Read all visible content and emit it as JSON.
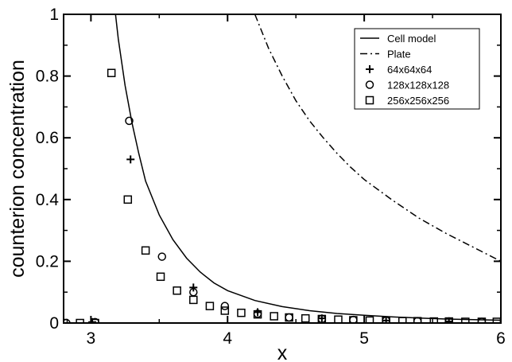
{
  "chart_data": {
    "type": "scatter",
    "xlabel": "x",
    "ylabel": "counterion concentration",
    "xlim": [
      2.8,
      6
    ],
    "ylim": [
      0,
      1
    ],
    "x_ticks": [
      3,
      4,
      5,
      6
    ],
    "y_ticks": [
      0,
      0.2,
      0.4,
      0.6,
      0.8,
      1
    ],
    "x_tick_labels": [
      "3",
      "4",
      "5",
      "6"
    ],
    "y_tick_labels": [
      "0",
      "0.2",
      "0.4",
      "0.6",
      "0.8",
      "1"
    ],
    "grid": false,
    "legend_position": "top-right",
    "series": [
      {
        "name": "Cell model",
        "kind": "line",
        "style": "solid",
        "x": [
          3.18,
          3.2,
          3.25,
          3.3,
          3.35,
          3.4,
          3.5,
          3.6,
          3.7,
          3.8,
          3.9,
          4.0,
          4.2,
          4.4,
          4.6,
          4.8,
          5.0,
          5.2,
          5.4,
          5.6,
          5.8,
          6.0
        ],
        "y": [
          1.0,
          0.92,
          0.77,
          0.65,
          0.55,
          0.46,
          0.35,
          0.27,
          0.21,
          0.165,
          0.13,
          0.105,
          0.073,
          0.053,
          0.04,
          0.031,
          0.025,
          0.02,
          0.016,
          0.013,
          0.011,
          0.009
        ]
      },
      {
        "name": "Plate",
        "kind": "line",
        "style": "dash-dot",
        "x": [
          4.2,
          4.3,
          4.4,
          4.5,
          4.6,
          4.7,
          4.8,
          4.9,
          5.0,
          5.2,
          5.4,
          5.6,
          5.8,
          6.0
        ],
        "y": [
          1.0,
          0.89,
          0.8,
          0.72,
          0.655,
          0.6,
          0.55,
          0.505,
          0.465,
          0.4,
          0.34,
          0.29,
          0.245,
          0.2
        ]
      },
      {
        "name": "64x64x64",
        "kind": "marker",
        "marker": "plus",
        "x": [
          2.8,
          3.01,
          3.29,
          3.75,
          4.22,
          4.69,
          5.16,
          5.62
        ],
        "y": [
          0.0,
          0.003,
          0.53,
          0.115,
          0.035,
          0.015,
          0.008,
          0.005
        ]
      },
      {
        "name": "128x128x128",
        "kind": "marker",
        "marker": "circle",
        "x": [
          2.82,
          3.03,
          3.28,
          3.52,
          3.75,
          3.98,
          4.22,
          4.45,
          4.69,
          4.92,
          5.16,
          5.39,
          5.62,
          5.86
        ],
        "y": [
          0.0,
          0.003,
          0.655,
          0.215,
          0.1,
          0.055,
          0.03,
          0.018,
          0.013,
          0.01,
          0.008,
          0.006,
          0.005,
          0.004
        ]
      },
      {
        "name": "256x256x256",
        "kind": "marker",
        "marker": "square",
        "x": [
          2.8,
          2.92,
          3.03,
          3.15,
          3.27,
          3.4,
          3.51,
          3.63,
          3.75,
          3.87,
          3.98,
          4.1,
          4.22,
          4.34,
          4.45,
          4.57,
          4.69,
          4.81,
          4.92,
          5.04,
          5.16,
          5.28,
          5.39,
          5.51,
          5.62,
          5.74,
          5.86,
          5.97
        ],
        "y": [
          0.0,
          0.0,
          0.0,
          0.81,
          0.4,
          0.235,
          0.15,
          0.105,
          0.075,
          0.055,
          0.04,
          0.033,
          0.028,
          0.022,
          0.018,
          0.015,
          0.013,
          0.011,
          0.009,
          0.008,
          0.007,
          0.006,
          0.006,
          0.005,
          0.005,
          0.004,
          0.004,
          0.004
        ]
      }
    ]
  }
}
